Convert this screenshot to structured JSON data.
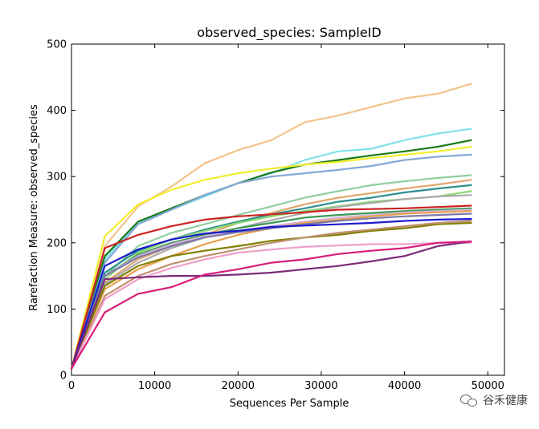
{
  "chart_data": {
    "type": "line",
    "title": "observed_species: SampleID",
    "xlabel": "Sequences Per Sample",
    "ylabel": "Rarefaction Measure: observed_species",
    "xlim": [
      0,
      52000
    ],
    "ylim": [
      0,
      500
    ],
    "xticks": [
      "0",
      "10000",
      "20000",
      "30000",
      "40000",
      "50000"
    ],
    "yticks": [
      "0",
      "100",
      "200",
      "300",
      "400",
      "500"
    ],
    "grid": false,
    "legend": "none",
    "x": [
      0,
      4000,
      8000,
      12000,
      16000,
      20000,
      24000,
      28000,
      32000,
      36000,
      40000,
      44000,
      48000
    ],
    "series": [
      {
        "color": "#f3c48b",
        "values": [
          10,
          195,
          255,
          285,
          320,
          340,
          355,
          382,
          392,
          405,
          418,
          425,
          440
        ]
      },
      {
        "color": "#7fe3e8",
        "values": [
          10,
          175,
          230,
          250,
          270,
          290,
          305,
          325,
          338,
          342,
          355,
          365,
          372
        ]
      },
      {
        "color": "#1a7a1a",
        "values": [
          10,
          180,
          232,
          252,
          272,
          290,
          306,
          318,
          325,
          332,
          338,
          345,
          355
        ]
      },
      {
        "color": "#f2ee2e",
        "values": [
          10,
          210,
          258,
          280,
          295,
          305,
          312,
          318,
          322,
          328,
          333,
          338,
          345
        ]
      },
      {
        "color": "#86a8d8",
        "values": [
          10,
          170,
          228,
          250,
          272,
          290,
          300,
          305,
          310,
          316,
          325,
          330,
          333
        ]
      },
      {
        "color": "#8fcf9f",
        "values": [
          10,
          150,
          195,
          215,
          228,
          242,
          255,
          268,
          278,
          287,
          293,
          298,
          302
        ]
      },
      {
        "color": "#e0a86d",
        "values": [
          10,
          140,
          175,
          195,
          212,
          230,
          245,
          258,
          268,
          275,
          282,
          288,
          295
        ]
      },
      {
        "color": "#2f8f8f",
        "values": [
          10,
          155,
          188,
          205,
          220,
          232,
          243,
          252,
          262,
          268,
          276,
          282,
          287
        ]
      },
      {
        "color": "#8bd870",
        "values": [
          10,
          145,
          185,
          205,
          218,
          230,
          240,
          248,
          255,
          262,
          266,
          270,
          278
        ]
      },
      {
        "color": "#aaaaaa",
        "values": [
          10,
          138,
          170,
          192,
          208,
          222,
          234,
          245,
          254,
          260,
          266,
          270,
          272
        ]
      },
      {
        "color": "#cc2222",
        "values": [
          10,
          192,
          212,
          225,
          235,
          240,
          243,
          246,
          250,
          251,
          252,
          254,
          256
        ]
      },
      {
        "color": "#3a9a55",
        "values": [
          10,
          150,
          182,
          200,
          212,
          222,
          230,
          238,
          242,
          245,
          248,
          250,
          252
        ]
      },
      {
        "color": "#d8b4d8",
        "values": [
          10,
          150,
          180,
          198,
          210,
          218,
          225,
          232,
          238,
          242,
          246,
          248,
          250
        ]
      },
      {
        "color": "#e8a050",
        "values": [
          10,
          130,
          160,
          180,
          198,
          212,
          222,
          230,
          235,
          240,
          244,
          246,
          248
        ]
      },
      {
        "color": "#7a7aa8",
        "values": [
          10,
          150,
          178,
          195,
          208,
          216,
          222,
          228,
          233,
          237,
          240,
          242,
          244
        ]
      },
      {
        "color": "#1a1acc",
        "values": [
          10,
          165,
          190,
          205,
          214,
          218,
          224,
          226,
          228,
          230,
          233,
          235,
          236
        ]
      },
      {
        "color": "#808000",
        "values": [
          10,
          135,
          165,
          180,
          188,
          195,
          203,
          208,
          212,
          218,
          222,
          228,
          230
        ]
      },
      {
        "color": "#c09070",
        "values": [
          10,
          120,
          150,
          168,
          180,
          190,
          200,
          208,
          215,
          220,
          225,
          230,
          233
        ]
      },
      {
        "color": "#f0a0c8",
        "values": [
          10,
          115,
          145,
          162,
          175,
          185,
          190,
          194,
          196,
          198,
          198,
          200,
          200
        ]
      },
      {
        "color": "#7b2b7b",
        "values": [
          10,
          145,
          148,
          150,
          150,
          152,
          155,
          160,
          165,
          172,
          180,
          195,
          202
        ]
      },
      {
        "color": "#d81b7b",
        "values": [
          10,
          95,
          123,
          133,
          152,
          160,
          170,
          175,
          183,
          188,
          192,
          200,
          202
        ]
      }
    ]
  },
  "watermark": {
    "text": "谷禾健康"
  }
}
